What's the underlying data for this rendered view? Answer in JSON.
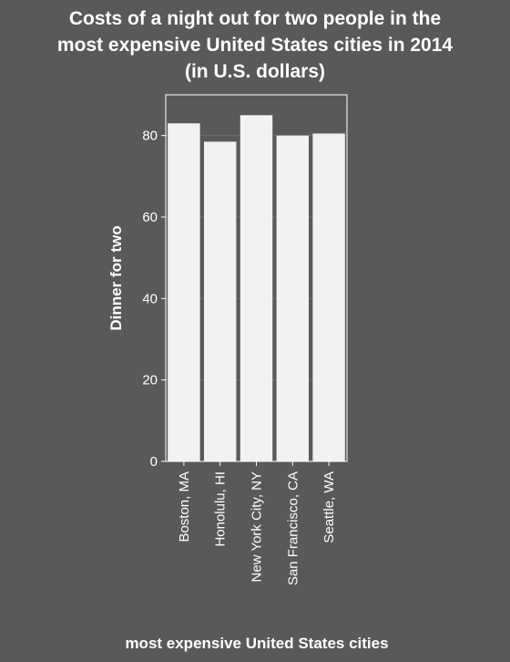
{
  "colors": {
    "background": "#595959",
    "panel": "#595959",
    "bar": "#f2f2f2",
    "grid": "#6e6e6e",
    "text": "#ffffff",
    "axis": "#ffffff"
  },
  "chart_data": {
    "type": "bar",
    "title_lines": [
      "Costs of a night out for two people in the",
      "most expensive United States cities in 2014",
      "(in U.S. dollars)"
    ],
    "xlabel": "most expensive United States cities",
    "ylabel": "Dinner for two",
    "categories": [
      "Boston, MA",
      "Honolulu, HI",
      "New York City, NY",
      "San Francisco, CA",
      "Seattle, WA"
    ],
    "values": [
      83,
      78.5,
      85,
      80,
      80.5
    ],
    "yticks": [
      "0",
      "20",
      "40",
      "60",
      "80"
    ],
    "ylim": [
      0,
      90
    ],
    "grid": true,
    "legend": "none"
  }
}
